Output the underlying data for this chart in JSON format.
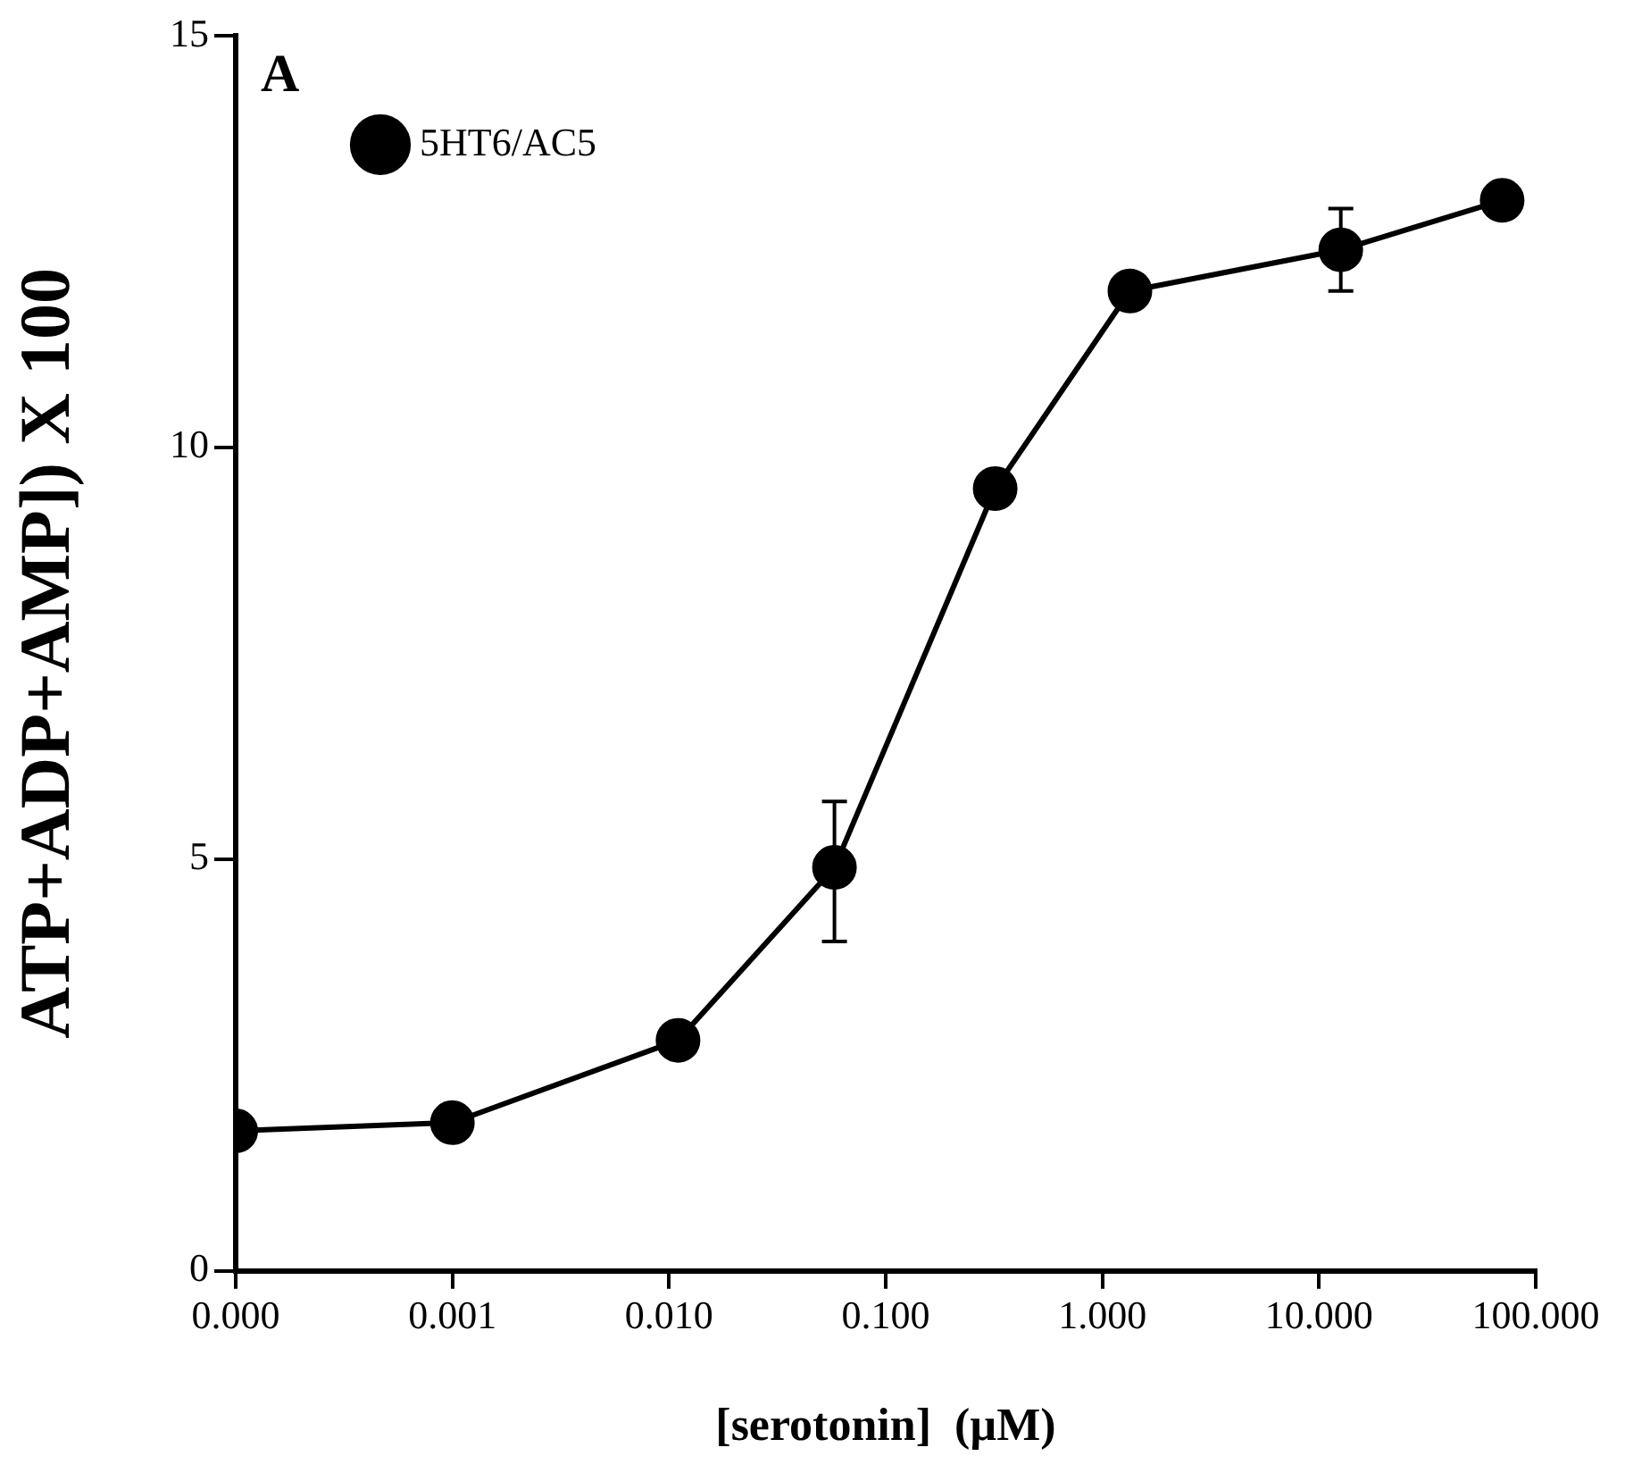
{
  "chart_data": {
    "type": "line",
    "xlabel": "[serotonin]  (µM)",
    "ylabel": "ATP+ADP+AMP]) X 100",
    "annotations": [
      "A"
    ],
    "log": "x",
    "xlim": [
      0.0001,
      100
    ],
    "xticks": [
      {
        "value": 0.0001,
        "label": "0.000"
      },
      {
        "value": 0.001,
        "label": "0.001"
      },
      {
        "value": 0.01,
        "label": "0.010"
      },
      {
        "value": 0.1,
        "label": "0.100"
      },
      {
        "value": 1,
        "label": "1.000"
      },
      {
        "value": 10,
        "label": "10.000"
      },
      {
        "value": 100,
        "label": "100.000"
      }
    ],
    "ylim": [
      0,
      15
    ],
    "yticks": [
      0,
      5,
      10,
      15
    ],
    "grid": false,
    "legend": "top left",
    "marker": "circle",
    "line_style": "solid",
    "x": [
      0.0001,
      0.001,
      0.011,
      0.058,
      0.32,
      1.34,
      12.6,
      70
    ],
    "series": [
      {
        "name": "5HT6/AC5",
        "color": "#000000",
        "values": [
          1.7,
          1.8,
          2.8,
          4.9,
          9.5,
          11.9,
          12.4,
          13.0
        ],
        "errors": [
          null,
          null,
          null,
          [
            4.0,
            5.7
          ],
          null,
          null,
          [
            11.9,
            12.9
          ],
          null
        ]
      }
    ]
  }
}
